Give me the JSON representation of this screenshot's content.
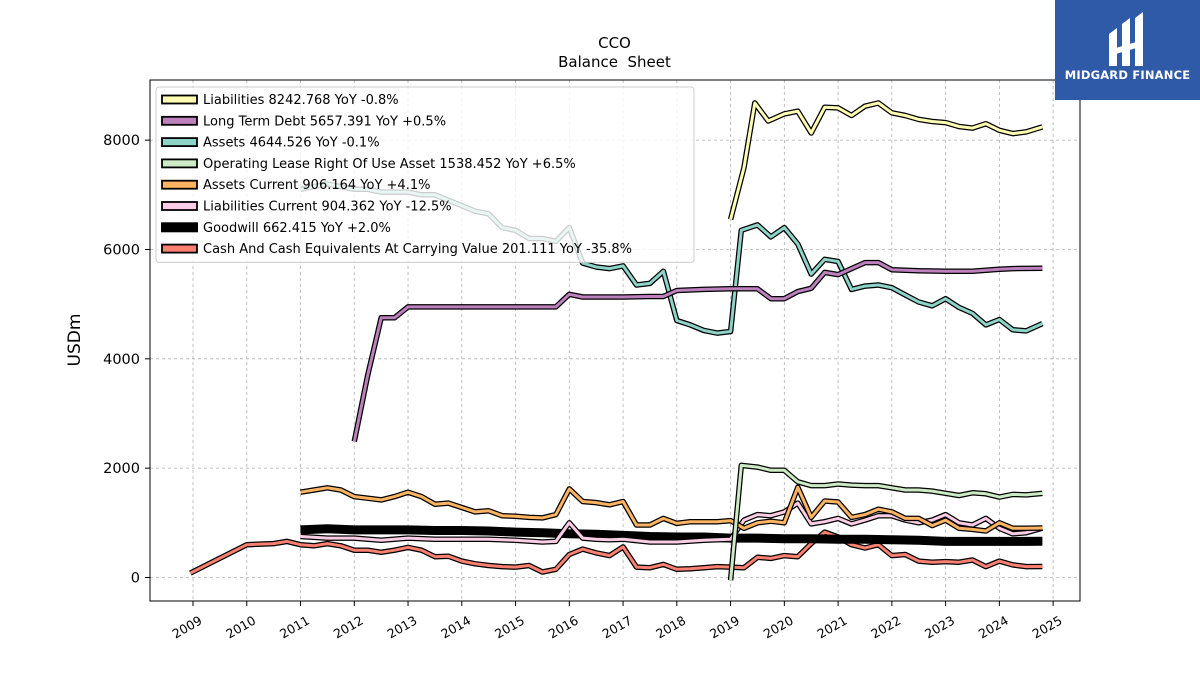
{
  "chart_data": {
    "type": "line",
    "title": "CCO",
    "subtitle": "Balance  Sheet",
    "xlabel": "",
    "ylabel": "USDm",
    "xlim": [
      2008.2,
      2025.5
    ],
    "ylim": [
      -430,
      9100
    ],
    "x_ticks": [
      "2009",
      "2010",
      "2011",
      "2012",
      "2013",
      "2014",
      "2015",
      "2016",
      "2017",
      "2018",
      "2019",
      "2020",
      "2021",
      "2022",
      "2023",
      "2024",
      "2025"
    ],
    "y_ticks": [
      "0",
      "2000",
      "4000",
      "6000",
      "8000"
    ],
    "grid": true,
    "legend_position": "top-left",
    "series": [
      {
        "name": "Liabilities  8242.768 YoY -0.8%",
        "color": "#ffffb3",
        "x": [
          2019.0,
          2019.25,
          2019.45,
          2019.7,
          2020.0,
          2020.25,
          2020.5,
          2020.75,
          2021.0,
          2021.25,
          2021.5,
          2021.75,
          2022.0,
          2022.25,
          2022.5,
          2022.75,
          2023.0,
          2023.25,
          2023.5,
          2023.75,
          2024.0,
          2024.25,
          2024.5,
          2024.8
        ],
        "y": [
          6550,
          7500,
          8680,
          8350,
          8480,
          8530,
          8130,
          8600,
          8590,
          8450,
          8620,
          8680,
          8500,
          8450,
          8380,
          8340,
          8320,
          8250,
          8220,
          8300,
          8180,
          8120,
          8150,
          8243
        ]
      },
      {
        "name": "Long Term Debt  5657.391 YoY +0.5%",
        "color": "#bc80bd",
        "x": [
          2012.0,
          2012.25,
          2012.5,
          2012.75,
          2013.0,
          2013.5,
          2014.0,
          2014.5,
          2015.0,
          2015.5,
          2015.75,
          2016.0,
          2016.25,
          2016.5,
          2017.0,
          2017.5,
          2017.75,
          2018.0,
          2018.5,
          2019.0,
          2019.5,
          2019.75,
          2020.0,
          2020.25,
          2020.5,
          2020.75,
          2021.0,
          2021.25,
          2021.5,
          2021.75,
          2022.0,
          2022.5,
          2023.0,
          2023.5,
          2023.75,
          2024.0,
          2024.25,
          2024.8
        ],
        "y": [
          2490,
          3700,
          4750,
          4750,
          4950,
          4950,
          4950,
          4950,
          4950,
          4950,
          4950,
          5180,
          5130,
          5130,
          5130,
          5140,
          5140,
          5250,
          5270,
          5280,
          5280,
          5100,
          5100,
          5230,
          5290,
          5580,
          5540,
          5650,
          5760,
          5760,
          5630,
          5610,
          5600,
          5600,
          5620,
          5640,
          5650,
          5657
        ]
      },
      {
        "name": "Assets  4644.526 YoY -0.1%",
        "color": "#8dd3c7",
        "x": [
          2011.0,
          2011.25,
          2011.5,
          2011.75,
          2012.0,
          2012.25,
          2012.5,
          2012.75,
          2013.0,
          2013.25,
          2013.5,
          2013.75,
          2014.0,
          2014.25,
          2014.5,
          2014.75,
          2015.0,
          2015.25,
          2015.5,
          2015.75,
          2016.0,
          2016.25,
          2016.5,
          2016.75,
          2017.0,
          2017.25,
          2017.5,
          2017.75,
          2018.0,
          2018.25,
          2018.5,
          2018.75,
          2019.0,
          2019.2,
          2019.5,
          2019.75,
          2020.0,
          2020.25,
          2020.5,
          2020.75,
          2021.0,
          2021.25,
          2021.5,
          2021.75,
          2022.0,
          2022.25,
          2022.5,
          2022.75,
          2023.0,
          2023.25,
          2023.5,
          2023.75,
          2024.0,
          2024.25,
          2024.5,
          2024.8
        ],
        "y": [
          7100,
          7150,
          7200,
          7150,
          7100,
          7100,
          7050,
          7050,
          7050,
          7000,
          7000,
          6900,
          6800,
          6700,
          6650,
          6400,
          6350,
          6200,
          6200,
          6150,
          6400,
          5750,
          5680,
          5650,
          5700,
          5350,
          5380,
          5600,
          4700,
          4620,
          4520,
          4470,
          4500,
          6350,
          6450,
          6230,
          6400,
          6100,
          5550,
          5820,
          5780,
          5270,
          5330,
          5350,
          5300,
          5170,
          5040,
          4970,
          5100,
          4940,
          4830,
          4620,
          4720,
          4530,
          4510,
          4645
        ]
      },
      {
        "name": "Operating Lease Right Of Use Asset  1538.452 YoY +6.5%",
        "color": "#ccebc5",
        "x": [
          2019.0,
          2019.2,
          2019.5,
          2019.75,
          2020.0,
          2020.25,
          2020.5,
          2020.75,
          2021.0,
          2021.25,
          2021.5,
          2021.75,
          2022.0,
          2022.25,
          2022.5,
          2022.75,
          2023.0,
          2023.25,
          2023.5,
          2023.75,
          2024.0,
          2024.25,
          2024.5,
          2024.8
        ],
        "y": [
          -50,
          2050,
          2020,
          1960,
          1960,
          1750,
          1680,
          1680,
          1710,
          1690,
          1680,
          1680,
          1640,
          1600,
          1600,
          1580,
          1540,
          1500,
          1550,
          1530,
          1470,
          1520,
          1510,
          1538
        ]
      },
      {
        "name": "Assets Current  906.164 YoY +4.1%",
        "color": "#fdb462",
        "x": [
          2011.0,
          2011.25,
          2011.5,
          2011.75,
          2012.0,
          2012.25,
          2012.5,
          2012.75,
          2013.0,
          2013.25,
          2013.5,
          2013.75,
          2014.0,
          2014.25,
          2014.5,
          2014.75,
          2015.0,
          2015.25,
          2015.5,
          2015.75,
          2016.0,
          2016.25,
          2016.5,
          2016.75,
          2017.0,
          2017.25,
          2017.5,
          2017.75,
          2018.0,
          2018.25,
          2018.5,
          2018.75,
          2019.0,
          2019.25,
          2019.5,
          2019.75,
          2020.0,
          2020.25,
          2020.5,
          2020.75,
          2021.0,
          2021.25,
          2021.5,
          2021.75,
          2022.0,
          2022.25,
          2022.5,
          2022.75,
          2023.0,
          2023.25,
          2023.5,
          2023.75,
          2024.0,
          2024.25,
          2024.5,
          2024.8
        ],
        "y": [
          1560,
          1600,
          1640,
          1600,
          1480,
          1450,
          1420,
          1480,
          1560,
          1480,
          1340,
          1360,
          1280,
          1200,
          1220,
          1130,
          1120,
          1100,
          1090,
          1150,
          1620,
          1390,
          1370,
          1330,
          1390,
          960,
          960,
          1080,
          990,
          1020,
          1020,
          1020,
          1040,
          900,
          1000,
          1030,
          1000,
          1650,
          1100,
          1400,
          1380,
          1100,
          1150,
          1250,
          1200,
          1080,
          1080,
          950,
          1050,
          900,
          880,
          850,
          1000,
          900,
          900,
          906
        ]
      },
      {
        "name": "Liabilities Current  904.362 YoY -12.5%",
        "color": "#fccde5",
        "x": [
          2011.0,
          2011.5,
          2012.0,
          2012.5,
          2013.0,
          2013.5,
          2014.0,
          2014.5,
          2015.0,
          2015.5,
          2015.75,
          2016.0,
          2016.25,
          2016.5,
          2016.75,
          2017.0,
          2017.5,
          2018.0,
          2018.5,
          2019.0,
          2019.25,
          2019.5,
          2019.75,
          2020.0,
          2020.25,
          2020.5,
          2020.75,
          2021.0,
          2021.25,
          2021.5,
          2021.75,
          2022.0,
          2022.25,
          2022.5,
          2022.75,
          2023.0,
          2023.25,
          2023.5,
          2023.75,
          2024.0,
          2024.25,
          2024.5,
          2024.8
        ],
        "y": [
          750,
          720,
          720,
          680,
          720,
          700,
          700,
          700,
          680,
          650,
          660,
          1000,
          720,
          700,
          690,
          700,
          650,
          650,
          680,
          700,
          1050,
          1150,
          1130,
          1200,
          1360,
          980,
          1020,
          1080,
          980,
          1050,
          1130,
          1130,
          1050,
          1000,
          1050,
          1150,
          1000,
          960,
          1080,
          900,
          800,
          820,
          904
        ]
      },
      {
        "name": "Goodwill  662.415 YoY +2.0%",
        "color": "#000000",
        "x": [
          2011.0,
          2011.5,
          2012.0,
          2012.5,
          2013.0,
          2013.5,
          2014.0,
          2014.5,
          2015.0,
          2015.5,
          2016.0,
          2016.5,
          2017.0,
          2017.5,
          2018.0,
          2018.5,
          2019.0,
          2019.5,
          2020.0,
          2020.5,
          2021.0,
          2021.5,
          2022.0,
          2022.5,
          2023.0,
          2023.5,
          2024.0,
          2024.5,
          2024.8
        ],
        "y": [
          870,
          890,
          870,
          870,
          870,
          860,
          860,
          850,
          830,
          820,
          800,
          790,
          770,
          750,
          740,
          740,
          720,
          720,
          710,
          710,
          700,
          700,
          690,
          680,
          660,
          660,
          660,
          660,
          662
        ]
      },
      {
        "name": "Cash And Cash Equivalents At Carrying Value  201.111 YoY -35.8%",
        "color": "#fb8072",
        "x": [
          2008.95,
          2010.0,
          2010.5,
          2010.75,
          2011.0,
          2011.25,
          2011.5,
          2011.75,
          2012.0,
          2012.25,
          2012.5,
          2012.75,
          2013.0,
          2013.25,
          2013.5,
          2013.75,
          2014.0,
          2014.25,
          2014.5,
          2014.75,
          2015.0,
          2015.25,
          2015.5,
          2015.75,
          2016.0,
          2016.25,
          2016.5,
          2016.75,
          2017.0,
          2017.25,
          2017.5,
          2017.75,
          2018.0,
          2018.25,
          2018.5,
          2018.75,
          2019.0,
          2019.25,
          2019.5,
          2019.75,
          2020.0,
          2020.25,
          2020.5,
          2020.75,
          2021.0,
          2021.25,
          2021.5,
          2021.75,
          2022.0,
          2022.25,
          2022.5,
          2022.75,
          2023.0,
          2023.25,
          2023.5,
          2023.75,
          2024.0,
          2024.25,
          2024.5,
          2024.8
        ],
        "y": [
          80,
          600,
          620,
          660,
          600,
          580,
          620,
          580,
          500,
          500,
          460,
          500,
          550,
          500,
          380,
          390,
          300,
          250,
          220,
          200,
          190,
          220,
          100,
          150,
          420,
          520,
          450,
          400,
          560,
          190,
          180,
          240,
          150,
          160,
          180,
          200,
          190,
          180,
          370,
          350,
          400,
          380,
          620,
          830,
          740,
          600,
          540,
          600,
          400,
          420,
          300,
          280,
          290,
          280,
          320,
          200,
          300,
          230,
          200,
          201
        ]
      }
    ]
  },
  "logo": {
    "text": "MIDGARD FINANCE",
    "bg_color": "#2f5aa8"
  }
}
